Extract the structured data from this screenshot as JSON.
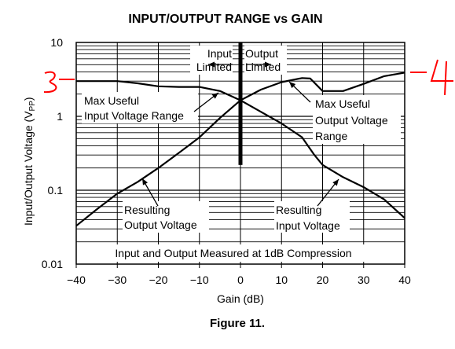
{
  "chart_data": {
    "type": "line",
    "title": "INPUT/OUTPUT RANGE vs GAIN",
    "caption": "Figure 11.",
    "xlabel": "Gain (dB)",
    "ylabel": "Input/Output Voltage (V",
    "ylabel_sub": "PP",
    "ylabel_close": ")",
    "xlim": [
      -40,
      40
    ],
    "ylim": [
      0.01,
      10
    ],
    "yscale": "log",
    "grid": true,
    "x_ticks": [
      "−40",
      "−30",
      "−20",
      "−10",
      "0",
      "10",
      "20",
      "30",
      "40"
    ],
    "y_ticks": [
      "10",
      "1",
      "0.1",
      "0.01"
    ],
    "boundary_gain": 0,
    "series": [
      {
        "name": "Max Useful Input Voltage Range",
        "points": [
          [
            -40,
            3.0
          ],
          [
            -35,
            3.0
          ],
          [
            -30,
            3.0
          ],
          [
            -25,
            2.8
          ],
          [
            -20,
            2.55
          ],
          [
            -15,
            2.5
          ],
          [
            -10,
            2.5
          ],
          [
            -5,
            2.2
          ],
          [
            0,
            1.65
          ],
          [
            5,
            1.15
          ],
          [
            10,
            0.8
          ],
          [
            15,
            0.52
          ],
          [
            18,
            0.3
          ],
          [
            20,
            0.22
          ],
          [
            25,
            0.15
          ],
          [
            30,
            0.11
          ],
          [
            35,
            0.075
          ],
          [
            40,
            0.042
          ]
        ]
      },
      {
        "name": "Max Useful Output Voltage Range",
        "points": [
          [
            -40,
            0.033
          ],
          [
            -35,
            0.055
          ],
          [
            -30,
            0.09
          ],
          [
            -25,
            0.13
          ],
          [
            -20,
            0.2
          ],
          [
            -15,
            0.32
          ],
          [
            -10,
            0.52
          ],
          [
            -5,
            0.95
          ],
          [
            0,
            1.65
          ],
          [
            5,
            2.3
          ],
          [
            10,
            2.9
          ],
          [
            15,
            3.3
          ],
          [
            17,
            3.25
          ],
          [
            20,
            2.2
          ],
          [
            25,
            2.2
          ],
          [
            30,
            2.75
          ],
          [
            35,
            3.5
          ],
          [
            40,
            3.9
          ]
        ]
      }
    ],
    "annotations": {
      "input_limited": [
        "Input",
        "Limited"
      ],
      "output_limited": [
        "Output",
        "Limited"
      ],
      "max_in": [
        "Max Useful",
        "Input Voltage Range"
      ],
      "max_out": [
        "Max Useful",
        "Output Voltage",
        "Range"
      ],
      "res_out": [
        "Resulting",
        "Output Voltage"
      ],
      "res_in": [
        "Resulting",
        "Input Voltage"
      ],
      "measure_note": "Input and Output Measured at 1dB Compression"
    },
    "handwritten_marks": [
      "3",
      "4"
    ]
  },
  "colors": {
    "line": "#000000",
    "grid": "#000000",
    "marks": "#ff0000",
    "background": "#ffffff"
  }
}
